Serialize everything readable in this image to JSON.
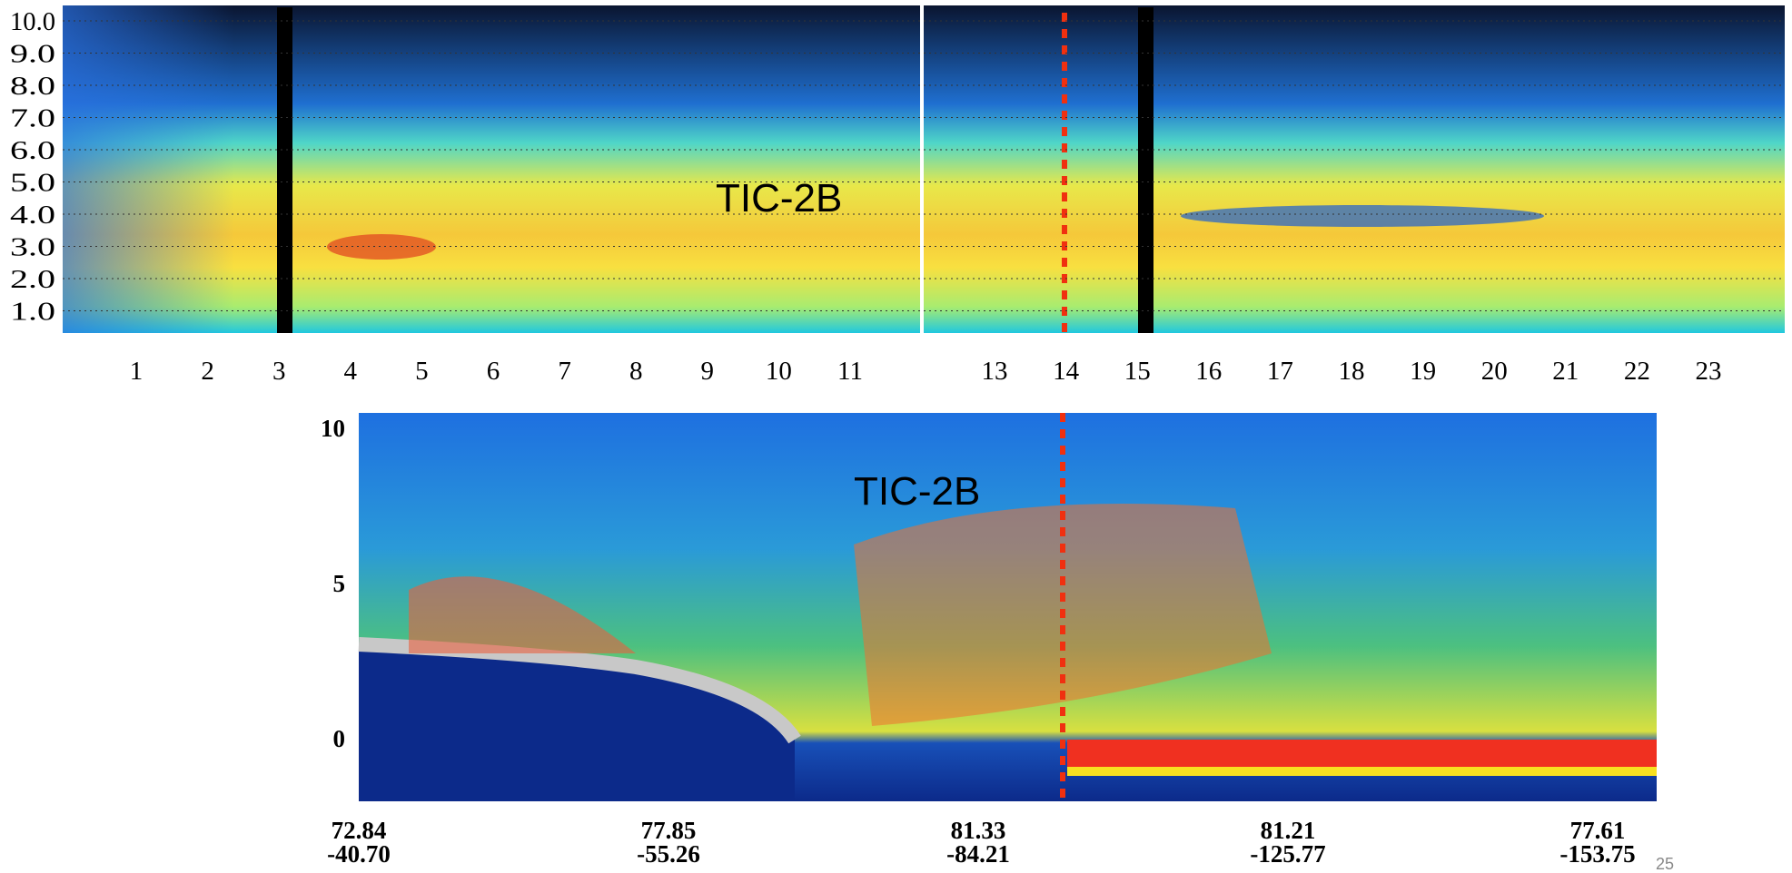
{
  "top_panel": {
    "annotation": "TIC-2B",
    "y_tick_labels": [
      "10.0",
      "9.0",
      "8.0",
      "7.0",
      "6.0",
      "5.0",
      "4.0",
      "3.0",
      "2.0",
      "1.0"
    ],
    "left_x_ticks": [
      1,
      2,
      3,
      4,
      5,
      6,
      7,
      8,
      9,
      10,
      11
    ],
    "right_x_ticks": [
      13,
      14,
      15,
      16,
      17,
      18,
      19,
      20,
      21,
      22,
      23
    ]
  },
  "bottom_panel": {
    "annotation": "TIC-2B",
    "y_ticks": [
      10,
      5,
      0
    ],
    "x_ticks": [
      {
        "lat": "72.84",
        "lon": "-40.70"
      },
      {
        "lat": "77.85",
        "lon": "-55.26"
      },
      {
        "lat": "81.33",
        "lon": "-84.21"
      },
      {
        "lat": "81.21",
        "lon": "-125.77"
      },
      {
        "lat": "77.61",
        "lon": "-153.75"
      }
    ]
  },
  "slide_number": "25"
}
